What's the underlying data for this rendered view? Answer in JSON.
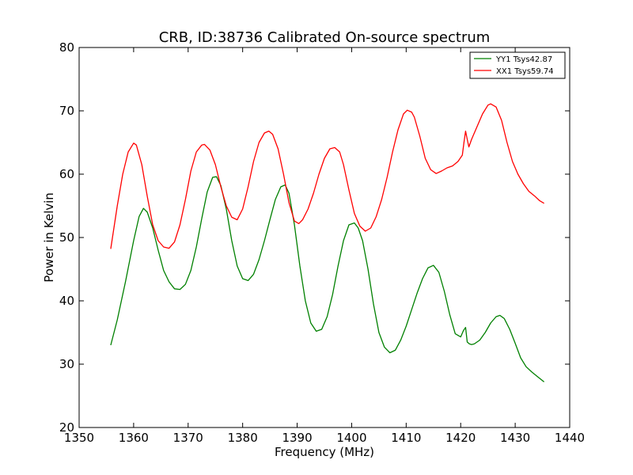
{
  "chart_data": {
    "type": "line",
    "title": "CRB, ID:38736 Calibrated On-source spectrum",
    "xlabel": "Frequency (MHz)",
    "ylabel": "Power in Kelvin",
    "xlim": [
      1350,
      1440
    ],
    "ylim": [
      20,
      80
    ],
    "xticks": [
      1350,
      1360,
      1370,
      1380,
      1390,
      1400,
      1410,
      1420,
      1430,
      1440
    ],
    "yticks": [
      20,
      30,
      40,
      50,
      60,
      70,
      80
    ],
    "grid": false,
    "legend_position": "top-right",
    "series": [
      {
        "name": "YY1 Tsys42.87",
        "color": "#008000",
        "x": [
          1355.8,
          1357,
          1358.5,
          1360,
          1361,
          1361.8,
          1362.5,
          1363.5,
          1364.5,
          1365.5,
          1366.5,
          1367.5,
          1368.5,
          1369.5,
          1370.5,
          1371.5,
          1372.5,
          1373.5,
          1374.5,
          1375.2,
          1376,
          1377,
          1378,
          1379,
          1380,
          1381,
          1382,
          1383,
          1384,
          1385,
          1386,
          1387,
          1387.8,
          1388.5,
          1389.5,
          1390.5,
          1391.5,
          1392.5,
          1393.5,
          1394.5,
          1395.5,
          1396.5,
          1397.5,
          1398.5,
          1399.5,
          1400.5,
          1401.2,
          1402,
          1403,
          1404,
          1405,
          1406,
          1407,
          1408,
          1409,
          1410,
          1411,
          1412,
          1413,
          1414,
          1415,
          1416,
          1417,
          1418,
          1419,
          1420,
          1420.5,
          1420.9,
          1421.2,
          1421.6,
          1422,
          1422.5,
          1423.5,
          1424.5,
          1425.5,
          1426.5,
          1427.2,
          1428,
          1429,
          1430,
          1431,
          1432,
          1433,
          1434,
          1435.3
        ],
        "y": [
          33.0,
          37.0,
          43.0,
          49.5,
          53.3,
          54.6,
          54.0,
          51.5,
          48.0,
          44.8,
          43.0,
          41.9,
          41.8,
          42.6,
          44.8,
          48.5,
          53.0,
          57.2,
          59.5,
          59.6,
          58.2,
          54.5,
          49.5,
          45.5,
          43.5,
          43.2,
          44.2,
          46.5,
          49.5,
          52.8,
          56.0,
          58.0,
          58.3,
          57.0,
          52.0,
          45.5,
          40.0,
          36.5,
          35.2,
          35.5,
          37.5,
          41.0,
          45.5,
          49.5,
          52.0,
          52.3,
          51.5,
          49.5,
          45.0,
          39.5,
          35.0,
          32.7,
          31.8,
          32.2,
          33.8,
          36.0,
          38.6,
          41.2,
          43.5,
          45.2,
          45.6,
          44.5,
          41.5,
          37.8,
          34.8,
          34.3,
          35.3,
          35.8,
          33.5,
          33.2,
          33.1,
          33.2,
          33.8,
          35.0,
          36.5,
          37.5,
          37.7,
          37.2,
          35.5,
          33.3,
          31.0,
          29.6,
          28.8,
          28.1,
          27.2
        ]
      },
      {
        "name": "XX1 Tsys59.74",
        "color": "#ff0000",
        "x": [
          1355.8,
          1357,
          1358,
          1359,
          1360,
          1360.5,
          1361.5,
          1362.5,
          1363.5,
          1364.5,
          1365.5,
          1366.5,
          1367.5,
          1368.5,
          1369.5,
          1370.5,
          1371.5,
          1372.5,
          1373,
          1374,
          1375,
          1376,
          1377,
          1378,
          1379,
          1380,
          1381,
          1382,
          1383,
          1384,
          1384.8,
          1385.5,
          1386.5,
          1387.5,
          1388.5,
          1389.5,
          1390.3,
          1391,
          1392,
          1393,
          1394,
          1395,
          1396,
          1396.9,
          1397.8,
          1398.5,
          1399.5,
          1400.5,
          1401.5,
          1402.5,
          1403.5,
          1404.5,
          1405.5,
          1406.5,
          1407.5,
          1408.5,
          1409.5,
          1410.2,
          1411,
          1411.5,
          1412.5,
          1413.5,
          1414.5,
          1415.5,
          1416.5,
          1417.5,
          1418.5,
          1419.5,
          1420.3,
          1420.6,
          1420.9,
          1421.2,
          1421.5,
          1422,
          1423,
          1424,
          1425,
          1425.5,
          1426.5,
          1427.5,
          1428.5,
          1429.5,
          1430.5,
          1431.5,
          1432.5,
          1433.5,
          1434.5,
          1435.3
        ],
        "y": [
          48.2,
          55.0,
          60.0,
          63.5,
          64.9,
          64.6,
          61.5,
          56.5,
          52.0,
          49.5,
          48.5,
          48.3,
          49.3,
          52.0,
          56.0,
          60.5,
          63.5,
          64.6,
          64.7,
          63.8,
          61.5,
          58.0,
          55.0,
          53.2,
          52.8,
          54.5,
          58.0,
          62.0,
          65.0,
          66.5,
          66.8,
          66.3,
          64.0,
          60.0,
          55.5,
          52.6,
          52.2,
          52.8,
          54.5,
          57.0,
          60.0,
          62.5,
          64.0,
          64.2,
          63.5,
          61.5,
          57.5,
          53.8,
          51.8,
          51.0,
          51.5,
          53.3,
          56.0,
          59.5,
          63.5,
          67.0,
          69.5,
          70.1,
          69.8,
          69.0,
          66.0,
          62.5,
          60.7,
          60.1,
          60.5,
          61.0,
          61.3,
          62.0,
          63.0,
          65.0,
          66.8,
          65.5,
          64.3,
          65.5,
          67.5,
          69.5,
          70.9,
          71.1,
          70.6,
          68.5,
          65.0,
          62.0,
          60.0,
          58.5,
          57.3,
          56.6,
          55.8,
          55.4
        ]
      }
    ]
  }
}
